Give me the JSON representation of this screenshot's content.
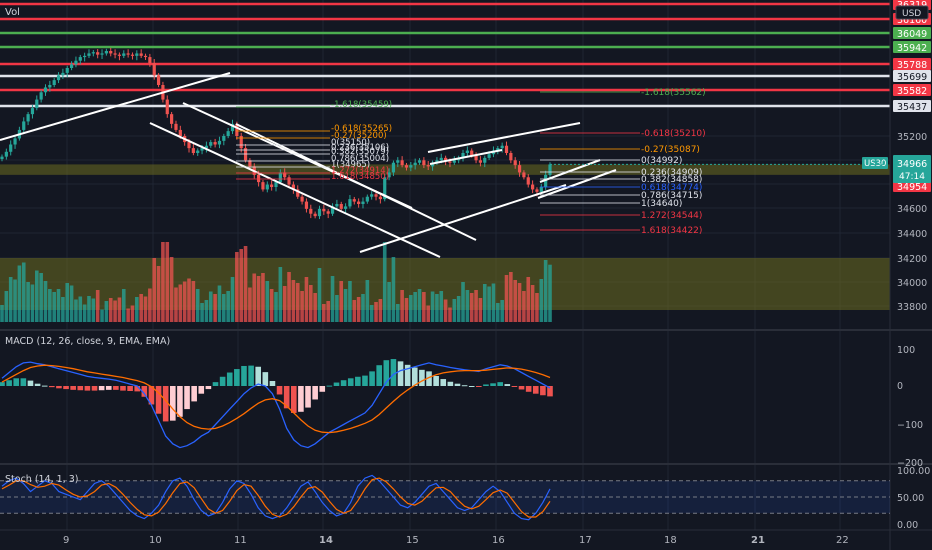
{
  "panes": {
    "volume_label": "Vol",
    "macd_label": "MACD (12, 26, close, 9, EMA, EMA)",
    "stoch_label": "Stoch (14, 1, 3)",
    "currency": "USD"
  },
  "symbol_badge": {
    "name": "US30",
    "price": "34966",
    "countdown": "47:14"
  },
  "colors": {
    "background": "#131722",
    "up": "#26a69a",
    "down": "#ef5350",
    "red_level": "#f23645",
    "green_level": "#4caf50",
    "white_level": "#e0e3eb",
    "zone": "#6b6b1f",
    "macd_line": "#2962ff",
    "signal_line": "#ff6d00",
    "stoch_k": "#2962ff",
    "stoch_d": "#ff6d00",
    "fib_orange": "#ff9800",
    "fib_red": "#f23645",
    "fib_white": "#ffffff",
    "fib_green": "#4caf50"
  },
  "price_axis": {
    "ticks": [
      "35200",
      "35000",
      "34800",
      "34600",
      "34400",
      "34200",
      "34000",
      "33800"
    ],
    "level_labels": [
      {
        "text": "36319",
        "kind": "red"
      },
      {
        "text": "36160",
        "kind": "red"
      },
      {
        "text": "36049",
        "kind": "green"
      },
      {
        "text": "35942",
        "kind": "green"
      },
      {
        "text": "35788",
        "kind": "red"
      },
      {
        "text": "35699",
        "kind": "white"
      },
      {
        "text": "35582",
        "kind": "red"
      },
      {
        "text": "35437",
        "kind": "white"
      },
      {
        "text": "34954",
        "kind": "red"
      }
    ]
  },
  "macd_axis": {
    "ticks": [
      "100",
      "0",
      "−100",
      "−200"
    ]
  },
  "stoch_axis": {
    "ticks": [
      "100.00",
      "50.00",
      "0.00"
    ]
  },
  "time_axis": {
    "ticks": [
      "9",
      "10",
      "11",
      "14",
      "15",
      "16",
      "17",
      "18",
      "21",
      "22"
    ],
    "bold": [
      "14",
      "21"
    ]
  },
  "fib_left": [
    {
      "text": "-1.618(35459)",
      "kind": "green"
    },
    {
      "text": "-0.618(35265)",
      "kind": "orange"
    },
    {
      "text": "-0.27(35200)",
      "kind": "orange"
    },
    {
      "text": "0(35150)",
      "kind": "white"
    },
    {
      "text": "0.236(35106)",
      "kind": "white"
    },
    {
      "text": "0.382(35079)",
      "kind": "white"
    },
    {
      "text": "0.786(35004)",
      "kind": "white"
    },
    {
      "text": "1(34965)",
      "kind": "white"
    },
    {
      "text": "1.272(34914)",
      "kind": "red"
    },
    {
      "text": "1.618(34850)",
      "kind": "red"
    }
  ],
  "fib_right": [
    {
      "text": "-1.618(35562)",
      "kind": "green"
    },
    {
      "text": "-0.618(35210)",
      "kind": "red"
    },
    {
      "text": "-0.27(35087)",
      "kind": "orange"
    },
    {
      "text": "0(34992)",
      "kind": "white"
    },
    {
      "text": "0.236(34909)",
      "kind": "white"
    },
    {
      "text": "0.382(34858)",
      "kind": "white"
    },
    {
      "text": "0.618(34774)",
      "kind": "blue"
    },
    {
      "text": "0.786(34715)",
      "kind": "white"
    },
    {
      "text": "1(34640)",
      "kind": "white"
    },
    {
      "text": "1.272(34544)",
      "kind": "red"
    },
    {
      "text": "1.618(34422)",
      "kind": "red"
    }
  ],
  "chart_data": {
    "type": "candlestick",
    "price_levels": [
      {
        "price": 36319,
        "kind": "red"
      },
      {
        "price": 36160,
        "kind": "red"
      },
      {
        "price": 36049,
        "kind": "green"
      },
      {
        "price": 35942,
        "kind": "green"
      },
      {
        "price": 35788,
        "kind": "red"
      },
      {
        "price": 35699,
        "kind": "white"
      },
      {
        "price": 35582,
        "kind": "red"
      },
      {
        "price": 35437,
        "kind": "white"
      }
    ],
    "zones": [
      {
        "top": 34966,
        "bottom": 34880
      },
      {
        "top": 34200,
        "bottom": 33770
      }
    ],
    "price_range": [
      33700,
      36400
    ],
    "candles_close": [
      35030,
      35070,
      35130,
      35180,
      35250,
      35320,
      35380,
      35430,
      35500,
      35560,
      35600,
      35620,
      35660,
      35700,
      35720,
      35760,
      35790,
      35820,
      35850,
      35860,
      35880,
      35890,
      35870,
      35880,
      35900,
      35880,
      35870,
      35860,
      35880,
      35870,
      35860,
      35880,
      35860,
      35850,
      35800,
      35700,
      35620,
      35500,
      35380,
      35300,
      35250,
      35200,
      35150,
      35100,
      35060,
      35080,
      35100,
      35120,
      35150,
      35130,
      35160,
      35200,
      35240,
      35300,
      35200,
      35100,
      35000,
      34950,
      34880,
      34820,
      34760,
      34800,
      34780,
      34820,
      34900,
      34860,
      34800,
      34760,
      34700,
      34660,
      34600,
      34560,
      34540,
      34600,
      34580,
      34560,
      34620,
      34640,
      34600,
      34620,
      34680,
      34660,
      34640,
      34660,
      34700,
      34720,
      34700,
      34680,
      34860,
      34900,
      34980,
      35000,
      34960,
      34940,
      34960,
      34980,
      35000,
      34960,
      34950,
      34980,
      35000,
      35020,
      34990,
      34980,
      35000,
      35020,
      35060,
      35080,
      35040,
      35000,
      34980,
      35020,
      35050,
      35080,
      35100,
      35120,
      35060,
      35000,
      34960,
      34900,
      34860,
      34800,
      34760,
      34740,
      34780,
      34880,
      34966
    ],
    "macd": {
      "ticks": [
        100,
        0,
        -100,
        -200
      ],
      "macd_line": [
        20,
        35,
        50,
        60,
        62,
        58,
        55,
        50,
        45,
        40,
        35,
        30,
        25,
        22,
        20,
        18,
        15,
        10,
        5,
        0,
        -20,
        -50,
        -90,
        -130,
        -150,
        -160,
        -155,
        -145,
        -130,
        -120,
        -100,
        -80,
        -60,
        -40,
        -20,
        -5,
        5,
        0,
        -20,
        -60,
        -110,
        -140,
        -155,
        -160,
        -150,
        -135,
        -120,
        -110,
        -100,
        -90,
        -80,
        -70,
        -50,
        -20,
        10,
        30,
        40,
        45,
        50,
        55,
        60,
        55,
        52,
        48,
        45,
        42,
        40,
        38,
        45,
        50,
        55,
        52,
        45,
        35,
        25,
        15,
        5,
        -5
      ],
      "signal_line": [
        10,
        20,
        30,
        40,
        48,
        52,
        54,
        53,
        51,
        48,
        45,
        41,
        37,
        34,
        31,
        28,
        25,
        22,
        18,
        14,
        8,
        -2,
        -18,
        -38,
        -60,
        -80,
        -95,
        -105,
        -110,
        -112,
        -110,
        -104,
        -95,
        -84,
        -72,
        -58,
        -45,
        -36,
        -33,
        -38,
        -52,
        -70,
        -88,
        -104,
        -115,
        -120,
        -121,
        -119,
        -115,
        -110,
        -104,
        -97,
        -88,
        -74,
        -57,
        -40,
        -24,
        -10,
        2,
        13,
        22,
        29,
        34,
        37,
        39,
        40,
        40,
        40,
        41,
        43,
        45,
        47,
        46,
        44,
        40,
        35,
        29,
        22
      ]
    },
    "stoch": {
      "ticks": [
        100,
        50,
        0
      ],
      "bands": [
        80,
        20
      ],
      "k": [
        70,
        80,
        85,
        75,
        60,
        70,
        80,
        75,
        60,
        55,
        50,
        45,
        60,
        75,
        80,
        70,
        55,
        40,
        25,
        15,
        10,
        20,
        35,
        60,
        80,
        85,
        70,
        45,
        25,
        15,
        20,
        40,
        65,
        80,
        75,
        55,
        30,
        15,
        10,
        15,
        30,
        50,
        70,
        78,
        60,
        40,
        25,
        15,
        20,
        40,
        70,
        85,
        90,
        80,
        65,
        50,
        35,
        30,
        40,
        55,
        70,
        75,
        60,
        45,
        30,
        25,
        30,
        45,
        60,
        70,
        60,
        40,
        20,
        10,
        8,
        20,
        40,
        65
      ],
      "d": [
        65,
        72,
        80,
        80,
        73,
        68,
        70,
        75,
        72,
        63,
        55,
        50,
        52,
        60,
        72,
        75,
        68,
        55,
        40,
        27,
        17,
        15,
        22,
        38,
        58,
        75,
        78,
        67,
        47,
        28,
        20,
        25,
        42,
        62,
        73,
        70,
        53,
        33,
        18,
        13,
        18,
        32,
        50,
        66,
        69,
        59,
        42,
        27,
        20,
        25,
        43,
        65,
        82,
        85,
        78,
        65,
        50,
        38,
        35,
        42,
        55,
        67,
        68,
        60,
        45,
        33,
        28,
        33,
        45,
        58,
        63,
        57,
        40,
        23,
        13,
        13,
        23,
        42
      ]
    },
    "ylabel": "",
    "xlabel": ""
  }
}
